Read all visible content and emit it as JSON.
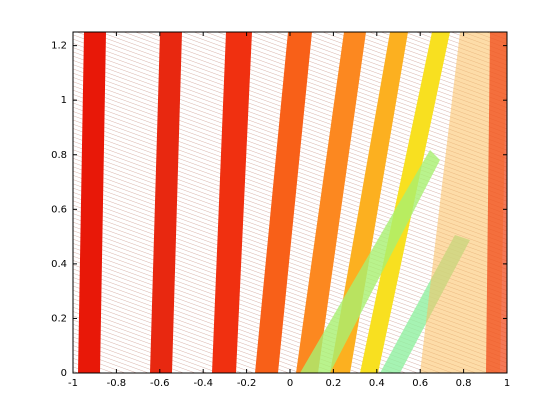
{
  "chart_data": {
    "type": "contour",
    "xlim": [
      -1,
      1
    ],
    "xticks": [
      -1,
      -0.8,
      -0.6,
      -0.4,
      -0.2,
      0,
      0.2,
      0.4,
      0.6,
      0.8,
      1
    ],
    "ylim": [
      0,
      1.25
    ],
    "yticks": [
      0,
      0.2,
      0.4,
      0.6,
      0.8,
      1,
      1.2
    ],
    "grid": false
  }
}
